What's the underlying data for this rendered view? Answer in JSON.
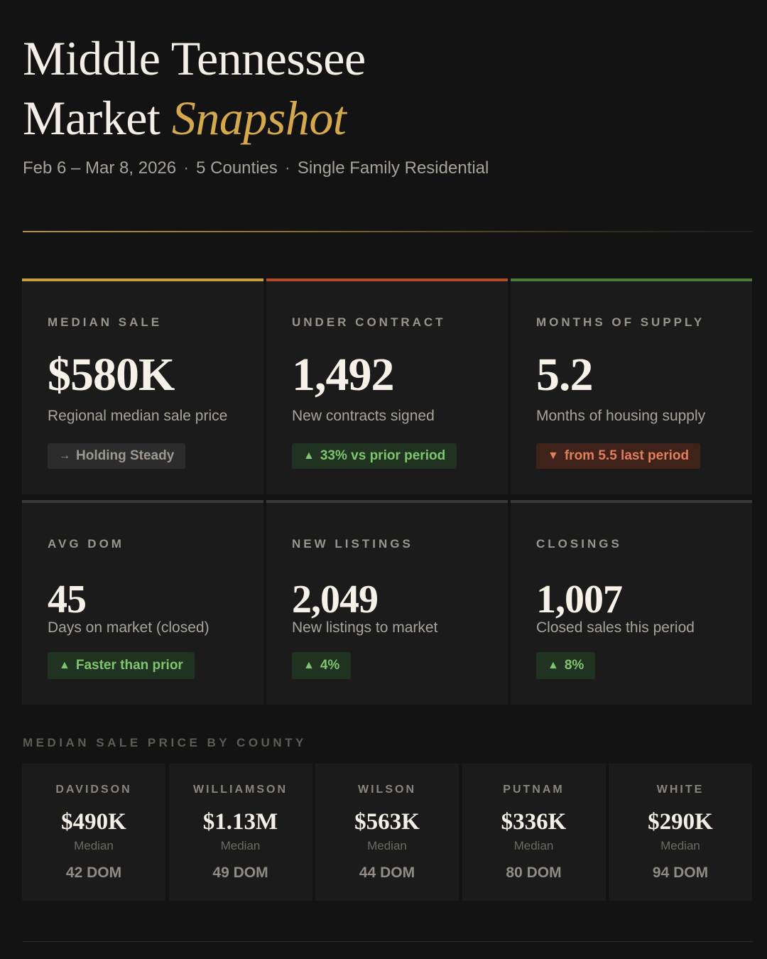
{
  "header": {
    "title_line1": "Middle Tennessee",
    "title_line2_plain": "Market",
    "title_line2_accent": "Snapshot",
    "subtitle": {
      "date_range": "Feb 6 – Mar 8, 2026",
      "separator": "·",
      "counties": "5 Counties",
      "property_type": "Single Family Residential"
    }
  },
  "metrics": [
    {
      "label": "MEDIAN SALE",
      "value": "$580K",
      "description": "Regional median sale price",
      "badge_icon": "→",
      "badge_icon_name": "arrow-right-icon",
      "badge_text": "Holding Steady",
      "badge_tone": "neutral",
      "accent": "#c99e3c"
    },
    {
      "label": "UNDER CONTRACT",
      "value": "1,492",
      "description": "New contracts signed",
      "badge_icon": "▲",
      "badge_icon_name": "triangle-up-icon",
      "badge_text": "33% vs prior period",
      "badge_tone": "up",
      "accent": "#b24c2a"
    },
    {
      "label": "MONTHS OF SUPPLY",
      "value": "5.2",
      "description": "Months of housing supply",
      "badge_icon": "▼",
      "badge_icon_name": "triangle-down-icon",
      "badge_text": "from 5.5 last period",
      "badge_tone": "down",
      "accent": "#4e7a3c"
    },
    {
      "label": "AVG DOM",
      "value": "45",
      "description": "Days on market (closed)",
      "badge_icon": "▲",
      "badge_icon_name": "triangle-up-icon",
      "badge_text": "Faster than prior",
      "badge_tone": "up"
    },
    {
      "label": "NEW LISTINGS",
      "value": "2,049",
      "description": "New listings to market",
      "badge_icon": "▲",
      "badge_icon_name": "triangle-up-icon",
      "badge_text": "4%",
      "badge_tone": "up"
    },
    {
      "label": "CLOSINGS",
      "value": "1,007",
      "description": "Closed sales this period",
      "badge_icon": "▲",
      "badge_icon_name": "triangle-up-icon",
      "badge_text": "8%",
      "badge_tone": "up"
    }
  ],
  "county_section": {
    "title": "MEDIAN SALE PRICE BY COUNTY",
    "counties": [
      {
        "name": "DAVIDSON",
        "price": "$490K",
        "median_label": "Median",
        "dom": "42 DOM"
      },
      {
        "name": "WILLIAMSON",
        "price": "$1.13M",
        "median_label": "Median",
        "dom": "49 DOM"
      },
      {
        "name": "WILSON",
        "price": "$563K",
        "median_label": "Median",
        "dom": "44 DOM"
      },
      {
        "name": "PUTNAM",
        "price": "$336K",
        "median_label": "Median",
        "dom": "80 DOM"
      },
      {
        "name": "WHITE",
        "price": "$290K",
        "median_label": "Median",
        "dom": "94 DOM"
      }
    ]
  },
  "colors": {
    "background": "#131313",
    "card": "#1b1b1b",
    "gold_accent": "#d4a84b",
    "positive": "#7fc46f",
    "negative": "#e07f5c"
  }
}
